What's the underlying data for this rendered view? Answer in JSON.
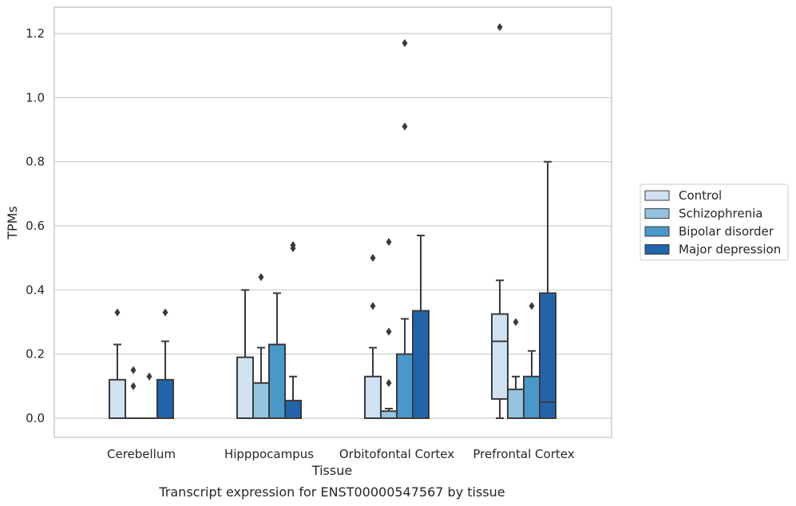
{
  "chart_data": {
    "type": "box",
    "xlabel": "Tissue",
    "ylabel": "TPMs",
    "caption": "Transcript expression for ENST00000547567 by tissue",
    "ylim": [
      -0.06,
      1.28
    ],
    "yticks": [
      0.0,
      0.2,
      0.4,
      0.6,
      0.8,
      1.0,
      1.2
    ],
    "ytick_labels": [
      "0.0",
      "0.2",
      "0.4",
      "0.6",
      "0.8",
      "1.0",
      "1.2"
    ],
    "grid": "horizontal",
    "legend_position": "right",
    "categories": [
      "Cerebellum",
      "Hipppocampus",
      "Orbitofontal Cortex",
      "Prefrontal Cortex"
    ],
    "hue_order": [
      "Control",
      "Schizophrenia",
      "Bipolar disorder",
      "Major depression"
    ],
    "colors": {
      "Control": "#d0e1f2",
      "Schizophrenia": "#94c4df",
      "Bipolar disorder": "#4a98c9",
      "Major depression": "#2164ab"
    },
    "boxes": [
      {
        "category": "Cerebellum",
        "group": "Control",
        "whislo": 0.0,
        "q1": 0.0,
        "med": 0.0,
        "q3": 0.12,
        "whishi": 0.23,
        "fliers": [
          0.33
        ]
      },
      {
        "category": "Cerebellum",
        "group": "Schizophrenia",
        "whislo": 0.0,
        "q1": 0.0,
        "med": 0.0,
        "q3": 0.0,
        "whishi": 0.0,
        "fliers": [
          0.1,
          0.15
        ]
      },
      {
        "category": "Cerebellum",
        "group": "Bipolar disorder",
        "whislo": 0.0,
        "q1": 0.0,
        "med": 0.0,
        "q3": 0.0,
        "whishi": 0.0,
        "fliers": [
          0.13
        ]
      },
      {
        "category": "Cerebellum",
        "group": "Major depression",
        "whislo": 0.0,
        "q1": 0.0,
        "med": 0.0,
        "q3": 0.12,
        "whishi": 0.24,
        "fliers": [
          0.33
        ]
      },
      {
        "category": "Hipppocampus",
        "group": "Control",
        "whislo": 0.0,
        "q1": 0.0,
        "med": 0.0,
        "q3": 0.19,
        "whishi": 0.4,
        "fliers": []
      },
      {
        "category": "Hipppocampus",
        "group": "Schizophrenia",
        "whislo": 0.0,
        "q1": 0.0,
        "med": 0.0,
        "q3": 0.11,
        "whishi": 0.22,
        "fliers": [
          0.44
        ]
      },
      {
        "category": "Hipppocampus",
        "group": "Bipolar disorder",
        "whislo": 0.0,
        "q1": 0.0,
        "med": 0.0,
        "q3": 0.23,
        "whishi": 0.39,
        "fliers": []
      },
      {
        "category": "Hipppocampus",
        "group": "Major depression",
        "whislo": 0.0,
        "q1": 0.0,
        "med": 0.0,
        "q3": 0.055,
        "whishi": 0.13,
        "fliers": [
          0.53,
          0.54
        ]
      },
      {
        "category": "Orbitofontal Cortex",
        "group": "Control",
        "whislo": 0.0,
        "q1": 0.0,
        "med": 0.0,
        "q3": 0.13,
        "whishi": 0.22,
        "fliers": [
          0.35,
          0.5
        ]
      },
      {
        "category": "Orbitofontal Cortex",
        "group": "Schizophrenia",
        "whislo": 0.0,
        "q1": 0.0,
        "med": 0.0,
        "q3": 0.022,
        "whishi": 0.03,
        "fliers": [
          0.11,
          0.27,
          0.55
        ]
      },
      {
        "category": "Orbitofontal Cortex",
        "group": "Bipolar disorder",
        "whislo": 0.0,
        "q1": 0.0,
        "med": 0.0,
        "q3": 0.2,
        "whishi": 0.31,
        "fliers": [
          0.91,
          1.17
        ]
      },
      {
        "category": "Orbitofontal Cortex",
        "group": "Major depression",
        "whislo": 0.0,
        "q1": 0.0,
        "med": 0.0,
        "q3": 0.335,
        "whishi": 0.57,
        "fliers": []
      },
      {
        "category": "Prefrontal Cortex",
        "group": "Control",
        "whislo": 0.0,
        "q1": 0.06,
        "med": 0.24,
        "q3": 0.325,
        "whishi": 0.43,
        "fliers": [
          1.22
        ]
      },
      {
        "category": "Prefrontal Cortex",
        "group": "Schizophrenia",
        "whislo": 0.0,
        "q1": 0.0,
        "med": 0.0,
        "q3": 0.09,
        "whishi": 0.13,
        "fliers": [
          0.3
        ]
      },
      {
        "category": "Prefrontal Cortex",
        "group": "Bipolar disorder",
        "whislo": 0.0,
        "q1": 0.0,
        "med": 0.0,
        "q3": 0.13,
        "whishi": 0.21,
        "fliers": [
          0.35
        ]
      },
      {
        "category": "Prefrontal Cortex",
        "group": "Major depression",
        "whislo": 0.0,
        "q1": 0.0,
        "med": 0.05,
        "q3": 0.39,
        "whishi": 0.8,
        "fliers": []
      }
    ]
  }
}
